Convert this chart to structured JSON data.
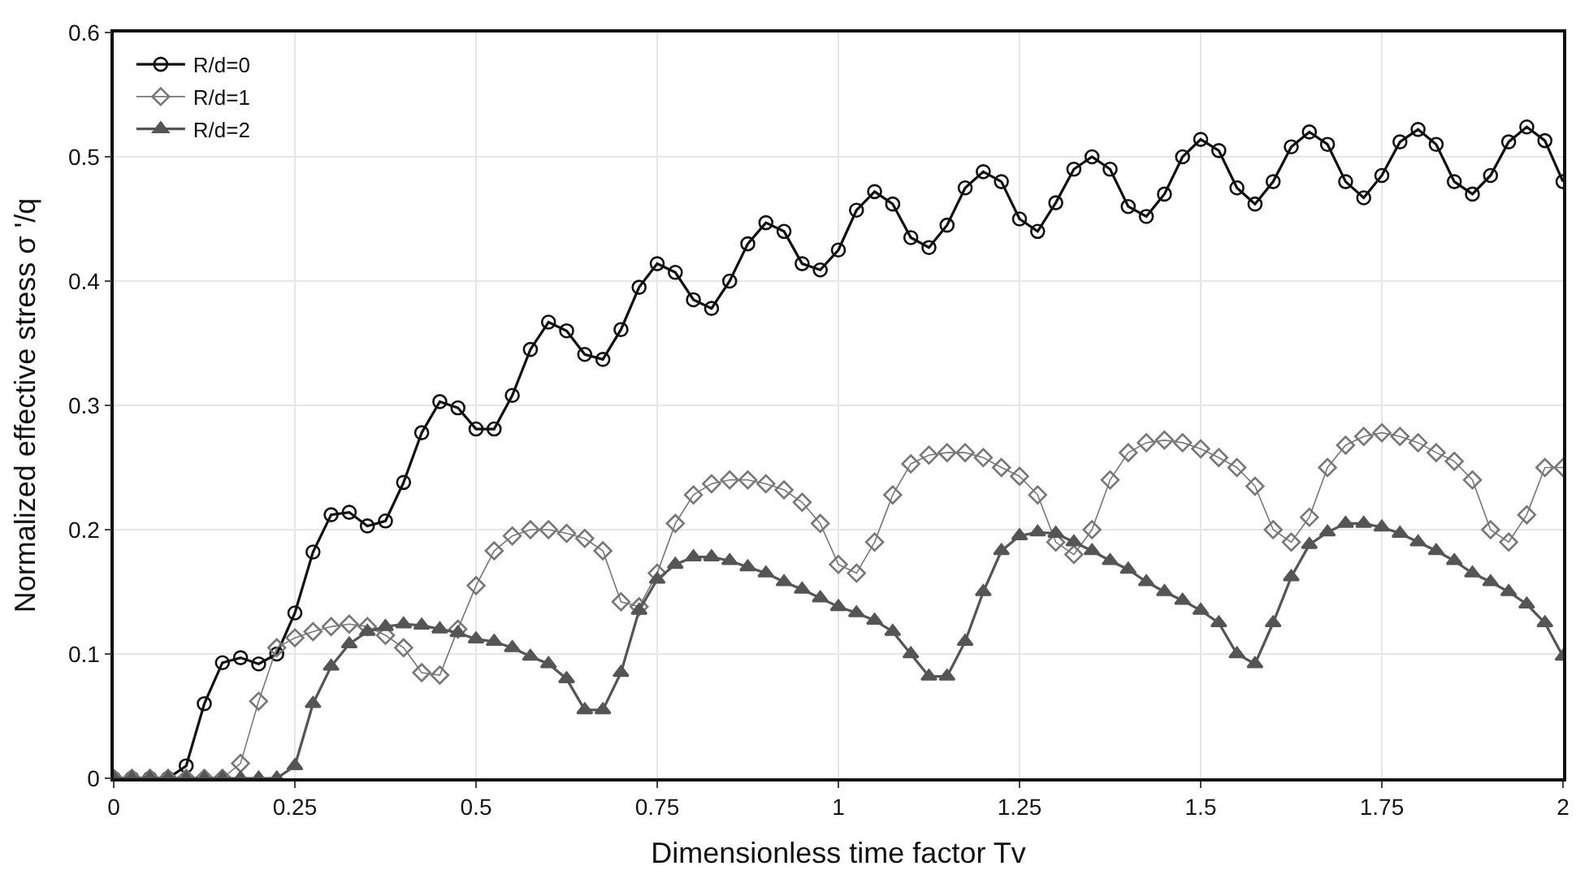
{
  "chart_data": {
    "type": "line",
    "xlabel": "Dimensionless time factor Tv",
    "ylabel": "Normalized effective stress σ '/q",
    "xlim": [
      0,
      2
    ],
    "xticks": [
      0,
      0.25,
      0.5,
      0.75,
      1,
      1.25,
      1.5,
      1.75,
      2
    ],
    "ylim": [
      0,
      0.6
    ],
    "yticks": [
      0,
      0.1,
      0.2,
      0.3,
      0.4,
      0.5,
      0.6
    ],
    "grid": true,
    "legend": "top left",
    "line_style": "solid",
    "x": [
      0,
      0.025,
      0.05,
      0.075,
      0.1,
      0.125,
      0.15,
      0.175,
      0.2,
      0.225,
      0.25,
      0.275,
      0.3,
      0.325,
      0.35,
      0.375,
      0.4,
      0.425,
      0.45,
      0.475,
      0.5,
      0.525,
      0.55,
      0.575,
      0.6,
      0.625,
      0.65,
      0.675,
      0.7,
      0.725,
      0.75,
      0.775,
      0.8,
      0.825,
      0.85,
      0.875,
      0.9,
      0.925,
      0.95,
      0.975,
      1,
      1.025,
      1.05,
      1.075,
      1.1,
      1.125,
      1.15,
      1.175,
      1.2,
      1.225,
      1.25,
      1.275,
      1.3,
      1.325,
      1.35,
      1.375,
      1.4,
      1.425,
      1.45,
      1.475,
      1.5,
      1.525,
      1.55,
      1.575,
      1.6,
      1.625,
      1.65,
      1.675,
      1.7,
      1.725,
      1.75,
      1.775,
      1.8,
      1.825,
      1.85,
      1.875,
      1.9,
      1.925,
      1.95,
      1.975,
      2
    ],
    "series": [
      {
        "name": "R/d=0",
        "color": "#111111",
        "marker": "circle",
        "values": [
          0,
          0,
          0,
          0,
          0.01,
          0.06,
          0.093,
          0.097,
          0.092,
          0.1,
          0.133,
          0.182,
          0.212,
          0.214,
          0.203,
          0.207,
          0.238,
          0.278,
          0.303,
          0.298,
          0.281,
          0.281,
          0.308,
          0.345,
          0.367,
          0.36,
          0.341,
          0.337,
          0.361,
          0.395,
          0.414,
          0.407,
          0.385,
          0.378,
          0.4,
          0.43,
          0.447,
          0.44,
          0.414,
          0.409,
          0.425,
          0.457,
          0.472,
          0.462,
          0.435,
          0.427,
          0.445,
          0.475,
          0.488,
          0.48,
          0.45,
          0.44,
          0.463,
          0.49,
          0.5,
          0.49,
          0.46,
          0.452,
          0.47,
          0.5,
          0.514,
          0.505,
          0.475,
          0.462,
          0.48,
          0.508,
          0.52,
          0.51,
          0.48,
          0.467,
          0.485,
          0.512,
          0.522,
          0.51,
          0.48,
          0.47,
          0.485,
          0.512,
          0.524,
          0.513,
          0.48
        ]
      },
      {
        "name": "R/d=1",
        "color": "#777777",
        "marker": "diamond",
        "values": [
          0,
          0,
          0,
          0,
          0,
          0,
          0,
          0.012,
          0.062,
          0.105,
          0.113,
          0.118,
          0.122,
          0.124,
          0.122,
          0.115,
          0.105,
          0.085,
          0.083,
          0.12,
          0.155,
          0.183,
          0.195,
          0.2,
          0.2,
          0.197,
          0.193,
          0.183,
          0.142,
          0.138,
          0.165,
          0.205,
          0.228,
          0.237,
          0.24,
          0.24,
          0.237,
          0.232,
          0.222,
          0.205,
          0.172,
          0.165,
          0.19,
          0.228,
          0.253,
          0.26,
          0.262,
          0.262,
          0.258,
          0.25,
          0.243,
          0.228,
          0.19,
          0.18,
          0.2,
          0.24,
          0.262,
          0.27,
          0.272,
          0.27,
          0.265,
          0.258,
          0.25,
          0.235,
          0.2,
          0.19,
          0.21,
          0.25,
          0.268,
          0.275,
          0.278,
          0.275,
          0.27,
          0.262,
          0.255,
          0.24,
          0.2,
          0.19,
          0.212,
          0.25,
          0.25
        ]
      },
      {
        "name": "R/d=2",
        "color": "#555555",
        "marker": "triangle",
        "values": [
          0,
          0,
          0,
          0,
          0,
          0,
          0,
          0,
          0,
          0,
          0.01,
          0.06,
          0.09,
          0.108,
          0.118,
          0.122,
          0.124,
          0.123,
          0.12,
          0.117,
          0.112,
          0.11,
          0.105,
          0.098,
          0.092,
          0.08,
          0.055,
          0.055,
          0.085,
          0.135,
          0.16,
          0.172,
          0.178,
          0.178,
          0.175,
          0.17,
          0.165,
          0.158,
          0.152,
          0.145,
          0.138,
          0.133,
          0.127,
          0.118,
          0.1,
          0.082,
          0.082,
          0.11,
          0.15,
          0.183,
          0.195,
          0.198,
          0.197,
          0.19,
          0.183,
          0.175,
          0.168,
          0.158,
          0.15,
          0.143,
          0.135,
          0.125,
          0.1,
          0.092,
          0.125,
          0.162,
          0.188,
          0.198,
          0.205,
          0.205,
          0.202,
          0.197,
          0.19,
          0.183,
          0.175,
          0.165,
          0.158,
          0.15,
          0.14,
          0.125,
          0.098
        ]
      }
    ]
  }
}
